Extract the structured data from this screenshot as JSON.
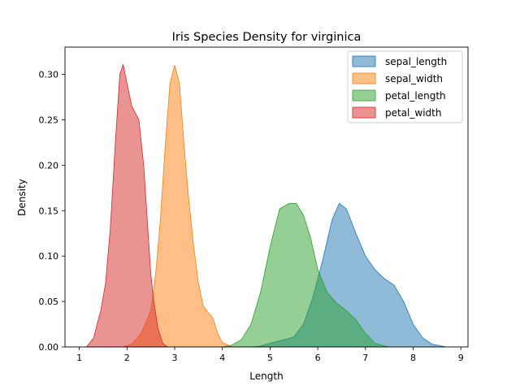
{
  "chart_data": {
    "type": "area",
    "title": "Iris Species Density for virginica",
    "xlabel": "Length",
    "ylabel": "Density",
    "xlim": [
      0.7,
      9.15
    ],
    "ylim": [
      0,
      0.33
    ],
    "xticks": [
      "1",
      "2",
      "3",
      "4",
      "5",
      "6",
      "7",
      "8",
      "9"
    ],
    "yticks": [
      "0.00",
      "0.05",
      "0.10",
      "0.15",
      "0.20",
      "0.25",
      "0.30"
    ],
    "grid": false,
    "legend_position": "top-right",
    "series": [
      {
        "name": "sepal_length",
        "color": "#1f77b4",
        "points": [
          [
            4.6,
            0
          ],
          [
            4.8,
            0.001
          ],
          [
            5.0,
            0.004
          ],
          [
            5.3,
            0.008
          ],
          [
            5.5,
            0.011
          ],
          [
            5.7,
            0.025
          ],
          [
            5.9,
            0.055
          ],
          [
            6.1,
            0.095
          ],
          [
            6.3,
            0.14
          ],
          [
            6.45,
            0.158
          ],
          [
            6.6,
            0.152
          ],
          [
            6.8,
            0.125
          ],
          [
            7.0,
            0.1
          ],
          [
            7.2,
            0.085
          ],
          [
            7.4,
            0.075
          ],
          [
            7.6,
            0.068
          ],
          [
            7.8,
            0.05
          ],
          [
            8.0,
            0.025
          ],
          [
            8.2,
            0.01
          ],
          [
            8.4,
            0.003
          ],
          [
            8.6,
            0.001
          ],
          [
            8.7,
            0
          ]
        ]
      },
      {
        "name": "sepal_width",
        "color": "#ff7f0e",
        "points": [
          [
            1.9,
            0
          ],
          [
            2.1,
            0.003
          ],
          [
            2.3,
            0.015
          ],
          [
            2.5,
            0.04
          ],
          [
            2.6,
            0.08
          ],
          [
            2.7,
            0.14
          ],
          [
            2.8,
            0.22
          ],
          [
            2.9,
            0.29
          ],
          [
            3.0,
            0.31
          ],
          [
            3.1,
            0.29
          ],
          [
            3.2,
            0.22
          ],
          [
            3.3,
            0.16
          ],
          [
            3.4,
            0.11
          ],
          [
            3.5,
            0.07
          ],
          [
            3.6,
            0.045
          ],
          [
            3.7,
            0.038
          ],
          [
            3.8,
            0.032
          ],
          [
            3.9,
            0.015
          ],
          [
            4.0,
            0.005
          ],
          [
            4.2,
            0
          ]
        ]
      },
      {
        "name": "petal_length",
        "color": "#2ca02c",
        "points": [
          [
            4.0,
            0
          ],
          [
            4.2,
            0.002
          ],
          [
            4.4,
            0.008
          ],
          [
            4.6,
            0.025
          ],
          [
            4.8,
            0.06
          ],
          [
            5.0,
            0.11
          ],
          [
            5.2,
            0.152
          ],
          [
            5.4,
            0.158
          ],
          [
            5.55,
            0.158
          ],
          [
            5.7,
            0.145
          ],
          [
            5.85,
            0.12
          ],
          [
            6.0,
            0.085
          ],
          [
            6.2,
            0.06
          ],
          [
            6.4,
            0.048
          ],
          [
            6.6,
            0.04
          ],
          [
            6.8,
            0.03
          ],
          [
            7.0,
            0.015
          ],
          [
            7.2,
            0.004
          ],
          [
            7.4,
            0.001
          ],
          [
            7.5,
            0
          ]
        ]
      },
      {
        "name": "petal_width",
        "color": "#d62728",
        "points": [
          [
            1.15,
            0
          ],
          [
            1.3,
            0.01
          ],
          [
            1.45,
            0.04
          ],
          [
            1.55,
            0.07
          ],
          [
            1.65,
            0.13
          ],
          [
            1.75,
            0.22
          ],
          [
            1.85,
            0.3
          ],
          [
            1.92,
            0.311
          ],
          [
            2.0,
            0.29
          ],
          [
            2.1,
            0.265
          ],
          [
            2.25,
            0.25
          ],
          [
            2.35,
            0.2
          ],
          [
            2.45,
            0.12
          ],
          [
            2.5,
            0.08
          ],
          [
            2.55,
            0.055
          ],
          [
            2.65,
            0.02
          ],
          [
            2.75,
            0.004
          ],
          [
            2.85,
            0
          ]
        ]
      }
    ]
  }
}
